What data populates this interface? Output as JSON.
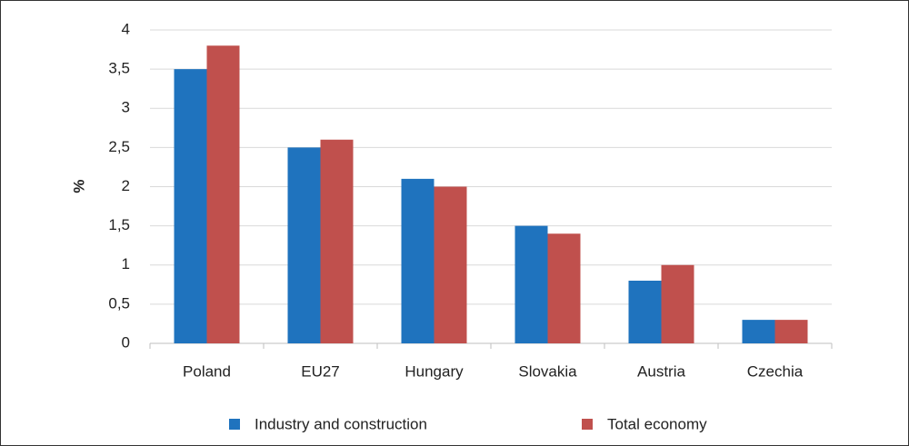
{
  "chart_data": {
    "type": "bar",
    "y_label": "%",
    "categories": [
      "Poland",
      "EU27",
      "Hungary",
      "Slovakia",
      "Austria",
      "Czechia"
    ],
    "series": [
      {
        "name": "Industry and construction",
        "color": "#1f73be",
        "values": [
          3.5,
          2.5,
          2.1,
          1.5,
          0.8,
          0.3
        ]
      },
      {
        "name": "Total economy",
        "color": "#c0504d",
        "values": [
          3.8,
          2.6,
          2.0,
          1.4,
          1.0,
          0.3
        ]
      }
    ],
    "ylim": [
      0,
      4
    ],
    "yticks": [
      0,
      {
        "value": 0.5,
        "label": "0,5"
      },
      1,
      {
        "value": 1.5,
        "label": "1,5"
      },
      2,
      {
        "value": 2.5,
        "label": "2,5"
      },
      3,
      {
        "value": 3.5,
        "label": "3,5"
      },
      4
    ],
    "grid": true
  }
}
